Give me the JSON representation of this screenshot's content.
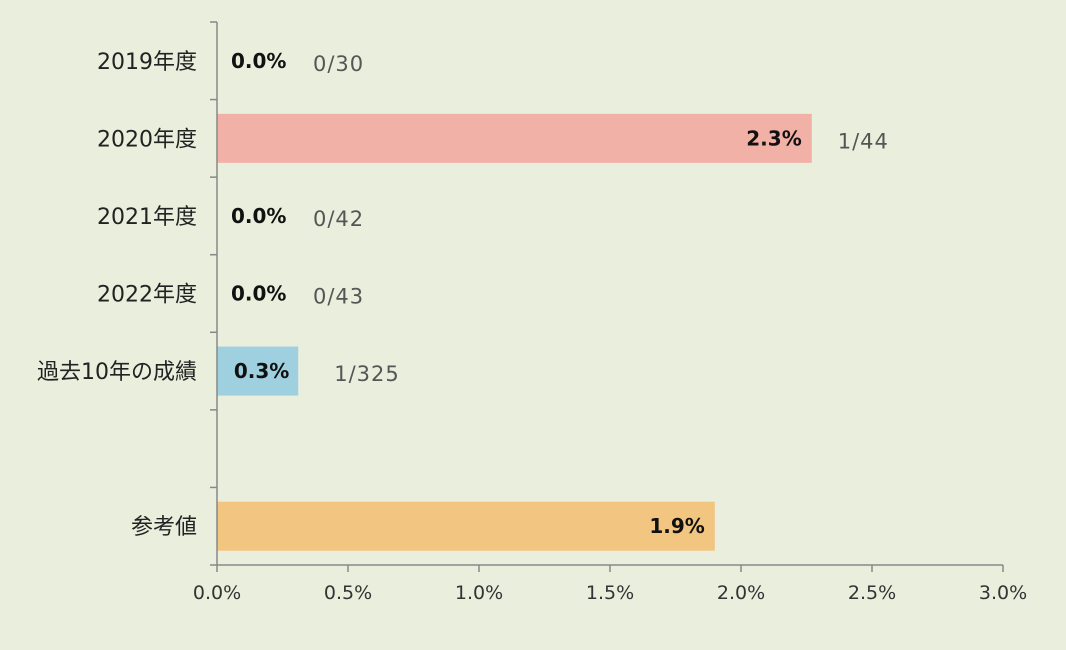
{
  "chart_data": {
    "type": "bar",
    "orientation": "horizontal",
    "categories": [
      "2019年度",
      "2020年度",
      "2021年度",
      "2022年度",
      "過去10年の成績",
      "",
      "参考値"
    ],
    "values": [
      0.0,
      2.27,
      0.0,
      0.0,
      0.31,
      null,
      1.9
    ],
    "value_labels": [
      "0.0%",
      "2.3%",
      "0.0%",
      "0.0%",
      "0.3%",
      "",
      "1.9%"
    ],
    "ratio_labels": [
      "0/30",
      "1/44",
      "0/42",
      "0/43",
      "1/325",
      "",
      ""
    ],
    "bar_colors": [
      "#f2b1a6",
      "#f2b1a6",
      "#f2b1a6",
      "#f2b1a6",
      "#9fd0df",
      "",
      "#f2c581"
    ],
    "xlim": [
      0,
      3.0
    ],
    "x_ticks": [
      0.0,
      0.5,
      1.0,
      1.5,
      2.0,
      2.5,
      3.0
    ],
    "x_tick_labels": [
      "0.0%",
      "0.5%",
      "1.0%",
      "1.5%",
      "2.0%",
      "2.5%",
      "3.0%"
    ],
    "grid": false,
    "axis_color": "#888888",
    "background": "#eaeedd"
  }
}
